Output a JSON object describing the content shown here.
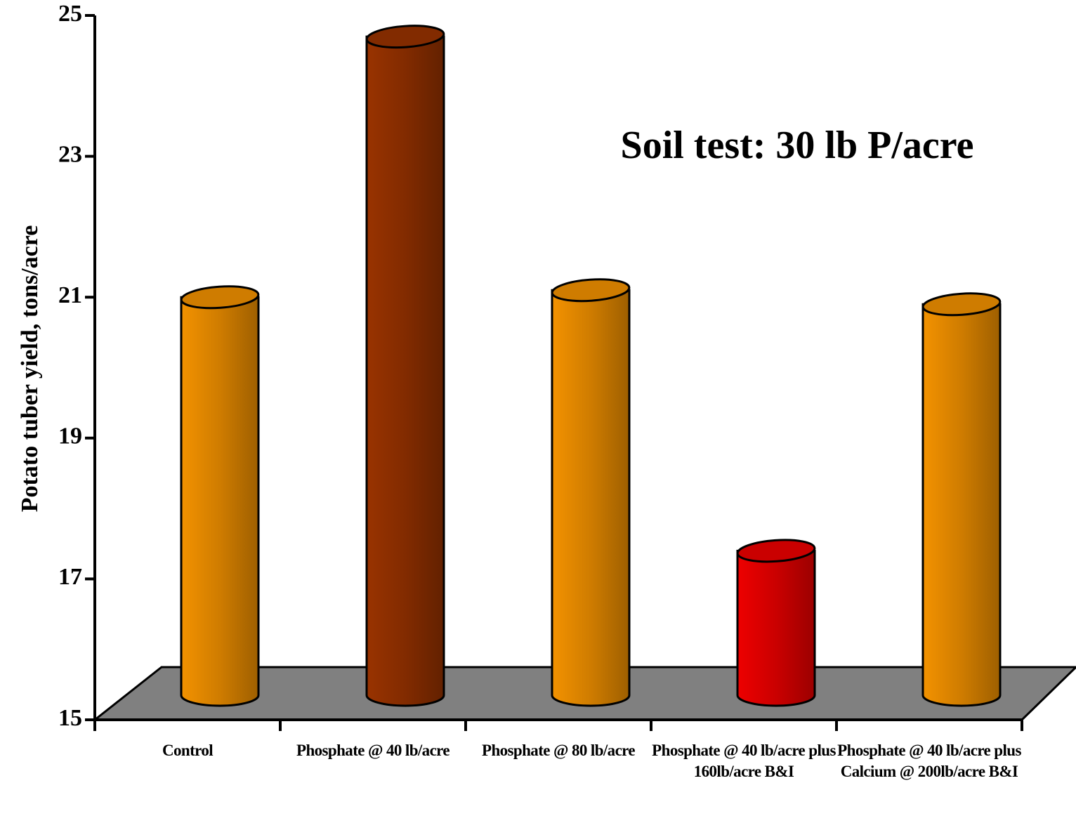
{
  "chart_data": {
    "type": "bar3d",
    "y_label": "Potato tuber yield, tons/acre",
    "annotation": "Soil test: 30 lb P/acre",
    "categories": [
      "Control",
      "Phosphate @ 40 lb/acre",
      "Phosphate @ 80 lb/acre",
      "Phosphate @ 40 lb/acre plus 160lb/acre B&I",
      "Phosphate @ 40 lb/acre plus Calcium @ 200lb/acre B&I"
    ],
    "values": [
      20.8,
      24.5,
      20.9,
      17.2,
      20.7
    ],
    "colors": [
      "#f39200",
      "#993300",
      "#f39200",
      "#ee0000",
      "#f39200"
    ],
    "floor_color": "#808080",
    "ylim": [
      15,
      25
    ],
    "yticks": [
      15,
      17,
      19,
      21,
      23,
      25
    ]
  }
}
